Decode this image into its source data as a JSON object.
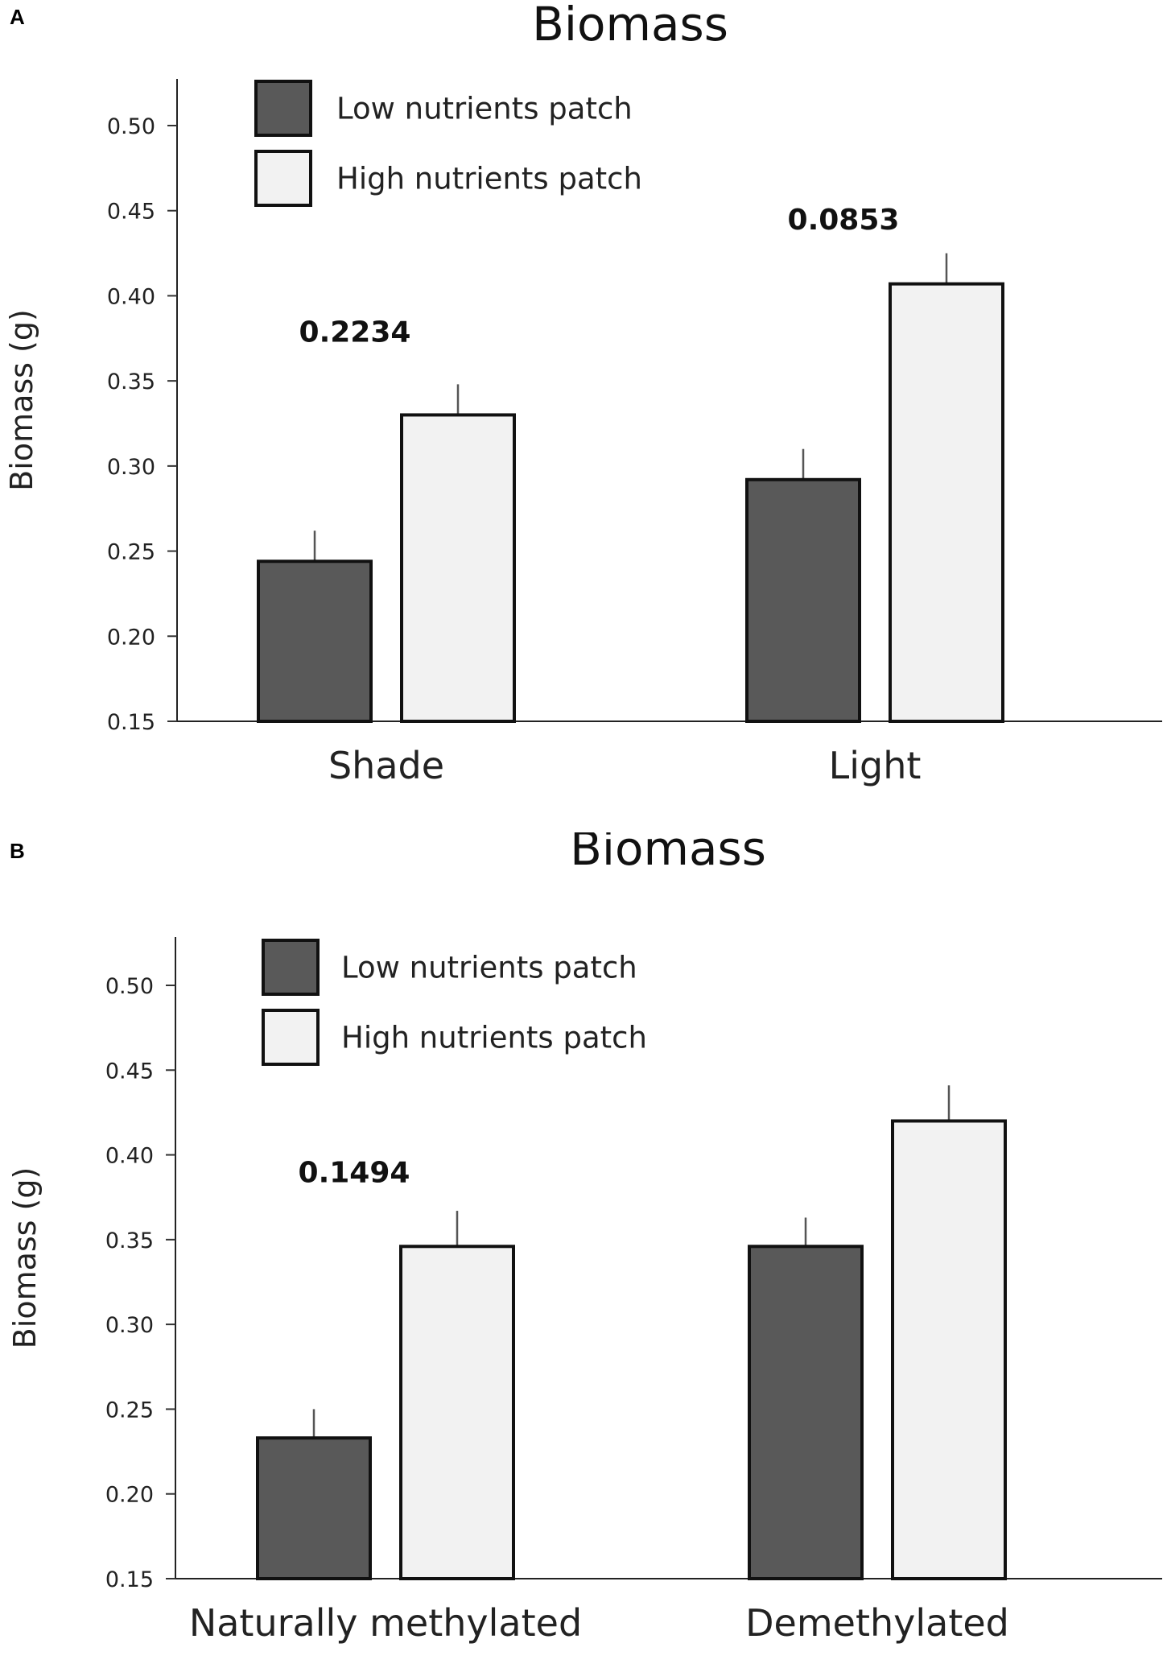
{
  "chart_data": [
    {
      "type": "bar",
      "panel": "A",
      "title": "Biomass",
      "ylabel": "Biomass (g)",
      "xlabel": "",
      "ylim": [
        0.15,
        0.52
      ],
      "yticks": [
        "0.15",
        "0.20",
        "0.25",
        "0.30",
        "0.35",
        "0.40",
        "0.45",
        "0.50"
      ],
      "categories": [
        "Shade",
        "Light"
      ],
      "series": [
        {
          "name": "Low nutrients patch",
          "color": "#595959",
          "values": [
            0.244,
            0.292
          ],
          "errors": [
            0.018,
            0.018
          ]
        },
        {
          "name": "High nutrients patch",
          "color": "#f2f2f2",
          "values": [
            0.33,
            0.407
          ],
          "errors": [
            0.018,
            0.018
          ]
        }
      ],
      "annotations": [
        "0.2234",
        "0.0853"
      ],
      "annotation_values": [
        0.373,
        0.439
      ],
      "legend_position": "top-left"
    },
    {
      "type": "bar",
      "panel": "B",
      "title": "Biomass",
      "ylabel": "Biomass (g)",
      "xlabel": "",
      "ylim": [
        0.15,
        0.52
      ],
      "yticks": [
        "0.15",
        "0.20",
        "0.25",
        "0.30",
        "0.35",
        "0.40",
        "0.45",
        "0.50"
      ],
      "categories": [
        "Naturally methylated",
        "Demethylated"
      ],
      "series": [
        {
          "name": "Low nutrients patch",
          "color": "#595959",
          "values": [
            0.233,
            0.346
          ],
          "errors": [
            0.017,
            0.017
          ]
        },
        {
          "name": "High nutrients patch",
          "color": "#f2f2f2",
          "values": [
            0.346,
            0.42
          ],
          "errors": [
            0.021,
            0.021
          ]
        }
      ],
      "annotations": [
        "0.1494",
        ""
      ],
      "annotation_values": [
        0.384,
        null
      ],
      "legend_position": "top-left"
    }
  ]
}
